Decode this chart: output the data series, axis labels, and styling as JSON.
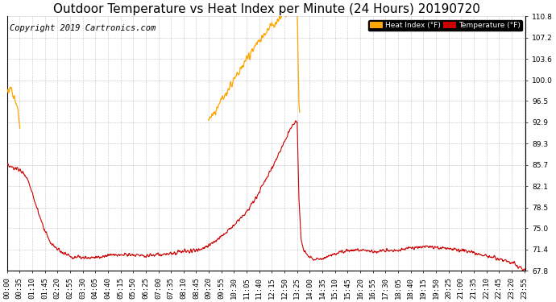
{
  "title": "Outdoor Temperature vs Heat Index per Minute (24 Hours) 20190720",
  "copyright": "Copyright 2019 Cartronics.com",
  "legend_heat_label": "Heat Index (°F)",
  "legend_temp_label": "Temperature (°F)",
  "heat_index_color": "#FFA500",
  "temp_color": "#CC0000",
  "ylim_min": 67.8,
  "ylim_max": 110.8,
  "yticks": [
    67.8,
    71.4,
    75.0,
    78.5,
    82.1,
    85.7,
    89.3,
    92.9,
    96.5,
    100.0,
    103.6,
    107.2,
    110.8
  ],
  "background_color": "#ffffff",
  "plot_bg_color": "#ffffff",
  "grid_color": "#999999",
  "title_fontsize": 11,
  "copyright_fontsize": 7.5,
  "tick_fontsize": 6.5,
  "num_minutes": 1440
}
